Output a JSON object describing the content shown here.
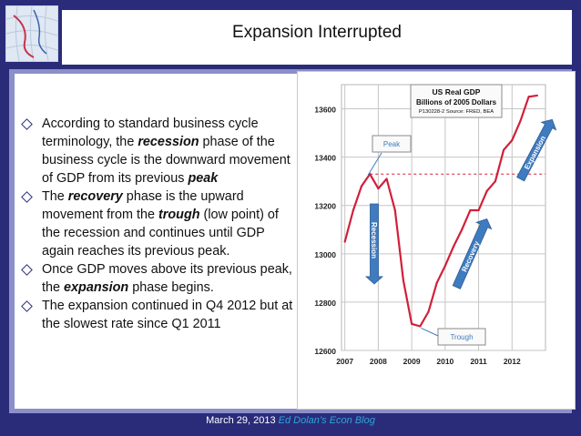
{
  "slide": {
    "title": "Expansion Interrupted",
    "bullets": [
      [
        {
          "t": "According to standard business cycle terminology, the "
        },
        {
          "t": "recession",
          "s": "bi"
        },
        {
          "t": " phase of the business cycle is the downward movement of GDP from its previous "
        },
        {
          "t": "peak",
          "s": "bi"
        }
      ],
      [
        {
          "t": "The "
        },
        {
          "t": "recovery",
          "s": "bi"
        },
        {
          "t": " phase is the upward movement from the "
        },
        {
          "t": "trough",
          "s": "bi"
        },
        {
          "t": " (low point) of the recession and continues until GDP again reaches its previous peak."
        }
      ],
      [
        {
          "t": "Once GDP moves above its previous peak, the "
        },
        {
          "t": "expansion",
          "s": "bi"
        },
        {
          "t": " phase begins."
        }
      ],
      [
        {
          "t": "The expansion continued in Q4 2012 but at the slowest rate since Q1 2011"
        }
      ]
    ],
    "footer": {
      "date": "March 29, 2013",
      "source": "Ed Dolan’s Econ Blog"
    }
  },
  "colors": {
    "background": "#2a2c7a",
    "frame": "#8c8fc8",
    "series": "#d0203a",
    "arrow": "#3f7bbf",
    "peak_line": "#d0203a",
    "footer_link": "#2fa3d8"
  },
  "chart_data": {
    "type": "line",
    "title": "US Real GDP",
    "subtitle": "Billions of 2005 Dollars",
    "source": "P130228-2 Source: FRED, BEA",
    "xlabel": "",
    "ylabel": "",
    "xlim": [
      2006.9,
      2013.0
    ],
    "ylim": [
      12600,
      13700
    ],
    "x_ticks": [
      "2007",
      "2008",
      "2009",
      "2010",
      "2011",
      "2012"
    ],
    "y_ticks": [
      "12600",
      "12800",
      "13000",
      "13200",
      "13400",
      "13600"
    ],
    "grid": "horizontal and vertical",
    "series": [
      {
        "x": [
          2007.0,
          2007.25,
          2007.5,
          2007.75,
          2008.0,
          2008.25,
          2008.5,
          2008.75,
          2009.0,
          2009.25,
          2009.5,
          2009.75,
          2010.0,
          2010.25,
          2010.5,
          2010.75,
          2011.0,
          2011.25,
          2011.5,
          2011.75,
          2012.0,
          2012.25,
          2012.5,
          2012.75
        ],
        "values": [
          13050,
          13180,
          13280,
          13330,
          13270,
          13310,
          13180,
          12890,
          12710,
          12700,
          12760,
          12880,
          12950,
          13030,
          13100,
          13180,
          13180,
          13260,
          13300,
          13430,
          13470,
          13550,
          13650,
          13655
        ]
      }
    ],
    "reference_line": {
      "y": 13330
    },
    "annotations": [
      {
        "text": "Peak"
      },
      {
        "text": "Recession"
      },
      {
        "text": "Trough"
      },
      {
        "text": "Recovery"
      },
      {
        "text": "Expansion"
      }
    ]
  }
}
